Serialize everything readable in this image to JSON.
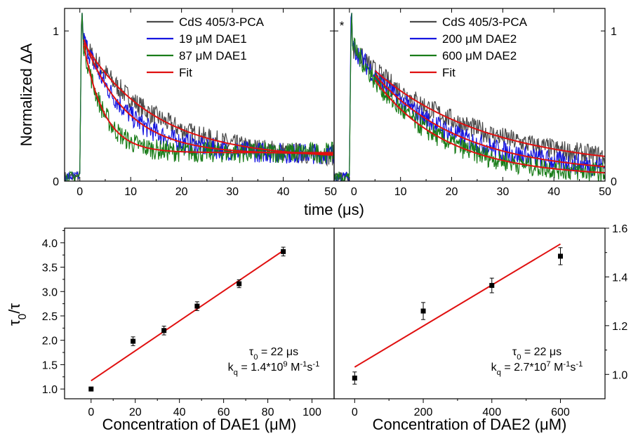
{
  "chart_data": [
    {
      "type": "line",
      "panel": "top-left",
      "ylabel": "Normalized ΔA",
      "xlabel": "time (μs)",
      "xlim": [
        -3,
        50
      ],
      "ylim": [
        0,
        1.15
      ],
      "xticks": [
        "0",
        "10",
        "20",
        "30",
        "40",
        "50"
      ],
      "yticks": [
        "0",
        "1"
      ],
      "legend_position": "top-right",
      "series": [
        {
          "name": "CdS 405/3-PCA",
          "color": "#4a4a4a",
          "amp": 0.78,
          "tau": 14,
          "offset": 0.15,
          "noise": 0.07
        },
        {
          "name": "19 μM DAE1",
          "color": "#1515e0",
          "amp": 0.78,
          "tau": 8.5,
          "offset": 0.18,
          "noise": 0.07
        },
        {
          "name": "87 μM DAE1",
          "color": "#1a7d1a",
          "amp": 0.75,
          "tau": 4.0,
          "offset": 0.19,
          "noise": 0.07
        },
        {
          "name": "Fit",
          "color": "#e01010"
        }
      ]
    },
    {
      "type": "line",
      "panel": "top-right",
      "xlim": [
        -3,
        50
      ],
      "ylim": [
        0,
        1.15
      ],
      "xticks": [
        "0",
        "10",
        "20",
        "30",
        "40",
        "50"
      ],
      "yticks": [
        "0",
        "1"
      ],
      "annotation": "*",
      "legend_position": "top-right",
      "series": [
        {
          "name": "CdS 405/3-PCA",
          "color": "#4a4a4a",
          "amp": 0.8,
          "tau": 22,
          "offset": 0.08,
          "noise": 0.07
        },
        {
          "name": "200 μM DAE2",
          "color": "#1515e0",
          "amp": 0.85,
          "tau": 17,
          "offset": 0.05,
          "noise": 0.07
        },
        {
          "name": "600 μM DAE2",
          "color": "#1a7d1a",
          "amp": 0.88,
          "tau": 14,
          "offset": 0.03,
          "noise": 0.07
        },
        {
          "name": "Fit",
          "color": "#e01010"
        }
      ]
    },
    {
      "type": "scatter",
      "panel": "bottom-left",
      "ylabel": "τ0/τ",
      "xlabel": "Concentration of DAE1 (μM)",
      "xlim": [
        -12,
        110
      ],
      "ylim": [
        0.8,
        4.3
      ],
      "xticks": [
        0,
        20,
        40,
        60,
        80,
        100
      ],
      "yticks": [
        "1.0",
        "1.5",
        "2.0",
        "2.5",
        "3.0",
        "3.5",
        "4.0"
      ],
      "points": [
        {
          "x": 0,
          "y": 1.0,
          "err": 0.02
        },
        {
          "x": 19,
          "y": 1.98,
          "err": 0.09
        },
        {
          "x": 33,
          "y": 2.2,
          "err": 0.09
        },
        {
          "x": 48,
          "y": 2.7,
          "err": 0.09
        },
        {
          "x": 67,
          "y": 3.16,
          "err": 0.08
        },
        {
          "x": 87,
          "y": 3.82,
          "err": 0.09
        }
      ],
      "fit": {
        "x": [
          0,
          87
        ],
        "y": [
          1.17,
          3.84
        ],
        "color": "#e01010"
      },
      "annotation_tau": "τ0 = 22 μs",
      "annotation_kq": "kq = 1.4*109 M-1s-1"
    },
    {
      "type": "scatter",
      "panel": "bottom-right",
      "xlabel": "Concentration of DAE2 (μM)",
      "xlim": [
        -60,
        730
      ],
      "ylim": [
        0.9,
        1.6
      ],
      "xticks": [
        0,
        200,
        400,
        600
      ],
      "yticks": [
        "1.0",
        "1.2",
        "1.4",
        "1.6"
      ],
      "points": [
        {
          "x": 0,
          "y": 0.985,
          "err": 0.025
        },
        {
          "x": 200,
          "y": 1.26,
          "err": 0.035
        },
        {
          "x": 400,
          "y": 1.365,
          "err": 0.03
        },
        {
          "x": 600,
          "y": 1.485,
          "err": 0.035
        }
      ],
      "fit": {
        "x": [
          0,
          600
        ],
        "y": [
          1.03,
          1.535
        ],
        "color": "#e01010"
      },
      "annotation_tau": "τ0 = 22 μs",
      "annotation_kq": "kq = 2.7*107 M-1s-1"
    }
  ]
}
